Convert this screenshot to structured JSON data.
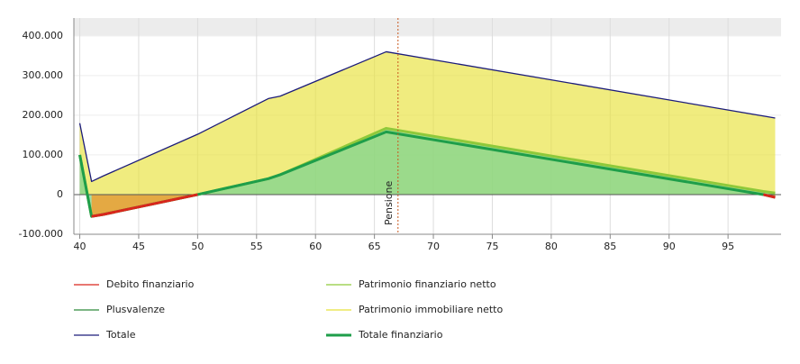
{
  "chart_data": {
    "type": "area",
    "x": [
      40,
      41,
      42,
      50,
      56,
      57,
      66,
      98,
      99
    ],
    "xlim": [
      39.5,
      99.5
    ],
    "xticks": [
      40,
      45,
      50,
      55,
      60,
      65,
      70,
      75,
      80,
      85,
      90,
      95
    ],
    "ylim": [
      -100000,
      445000
    ],
    "yticks": [
      {
        "value": -100000,
        "label": "-100.000"
      },
      0,
      {
        "value": 100000,
        "label": "100.000"
      },
      {
        "value": 200000,
        "label": "200.000"
      },
      {
        "value": 300000,
        "label": "300.000"
      },
      {
        "value": 400000,
        "label": "400.000"
      }
    ],
    "grid": true,
    "annotation": {
      "x": 67,
      "label": "Pensione"
    },
    "series": [
      {
        "name": "Debito finanziario",
        "color": "#d9261c",
        "values": [
          null,
          -55000,
          -50000,
          0,
          null,
          null,
          null,
          0,
          -7000
        ]
      },
      {
        "name": "Patrimonio finanziario netto",
        "color": "#8fc93a",
        "values": [
          100000,
          -55000,
          -50000,
          0,
          40000,
          50000,
          167000,
          8000,
          4000
        ]
      },
      {
        "name": "Plusvalenze",
        "color": "#2e8b3a"
      },
      {
        "name": "Patrimonio immobiliare netto",
        "color": "#e8e23a",
        "values": [
          80000,
          88000,
          97000,
          152000,
          202000,
          198000,
          193000,
          190000,
          189000
        ]
      },
      {
        "name": "Totale",
        "color": "#1c1c7a",
        "values": [
          180000,
          33000,
          47000,
          152000,
          242000,
          248000,
          360000,
          198000,
          193000
        ]
      },
      {
        "name": "Totale finanziario",
        "color": "#1e9e4a",
        "values": [
          100000,
          -55000,
          -50000,
          0,
          40000,
          50000,
          158000,
          0,
          -7000
        ]
      }
    ]
  }
}
